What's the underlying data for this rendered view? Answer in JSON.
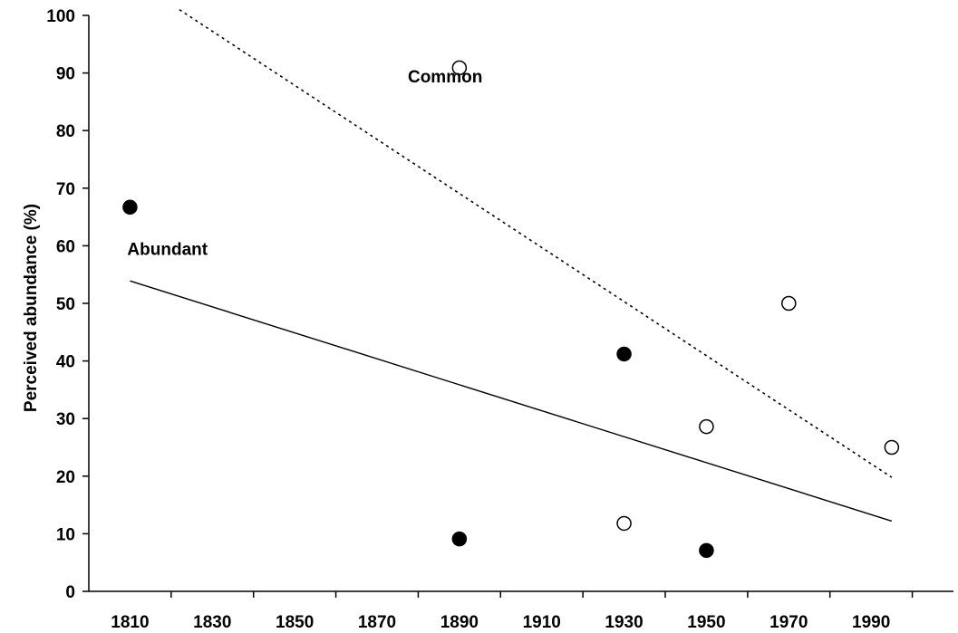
{
  "chart_data": {
    "type": "scatter",
    "title": "",
    "xlabel": "",
    "ylabel": "Perceived abundance (%)",
    "xlim": [
      1800,
      2010
    ],
    "ylim": [
      0,
      100
    ],
    "x_ticks": [
      1810,
      1830,
      1850,
      1870,
      1890,
      1910,
      1930,
      1950,
      1970,
      1990
    ],
    "x_tick_labels": [
      "1810",
      "1830",
      "1850",
      "1870",
      "1890",
      "1910",
      "1930",
      "1950",
      "1970",
      "1990"
    ],
    "y_ticks": [
      0,
      10,
      20,
      30,
      40,
      50,
      60,
      70,
      80,
      90,
      100
    ],
    "y_tick_labels": [
      "0",
      "10",
      "20",
      "30",
      "40",
      "50",
      "60",
      "70",
      "80",
      "90",
      "100"
    ],
    "grid": false,
    "series": [
      {
        "marker": "filled-circle",
        "color": "#000000",
        "x": [
          1810,
          1890,
          1930,
          1950
        ],
        "y": [
          66.7,
          9.1,
          41.2,
          7.1
        ]
      },
      {
        "marker": "open-circle",
        "color": "#000000",
        "x": [
          1890,
          1930,
          1950,
          1970,
          1995
        ],
        "y": [
          90.9,
          11.8,
          28.6,
          50.0,
          25.0
        ]
      }
    ],
    "trendlines": [
      {
        "style": "solid",
        "x": [
          1810,
          1995
        ],
        "y": [
          53.9,
          12.2
        ]
      },
      {
        "style": "dotted",
        "x": [
          1822,
          1995
        ],
        "y": [
          101.0,
          19.8
        ]
      }
    ],
    "annotations": [
      {
        "text": "Common",
        "x": 1885,
        "y": 89.5
      },
      {
        "text": "Abundant",
        "x": 1810,
        "y": 59.5
      }
    ]
  }
}
